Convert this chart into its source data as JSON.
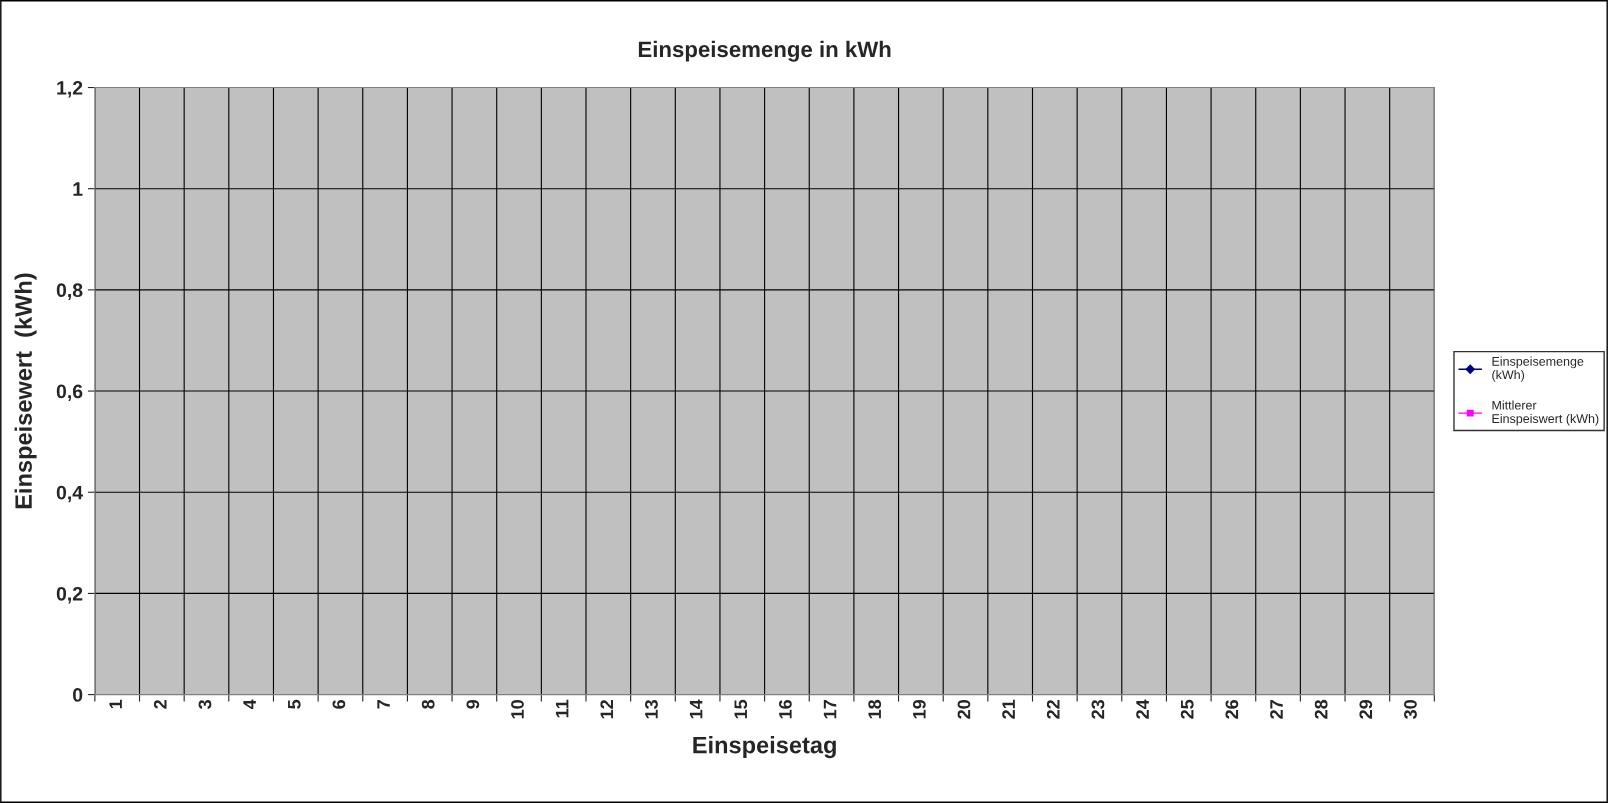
{
  "chart_data": {
    "type": "line",
    "title": "Einspeisemenge in kWh",
    "xlabel": "Einspeisetag",
    "ylabel": "Einspeisewert  (kWh)",
    "categories": [
      "1",
      "2",
      "3",
      "4",
      "5",
      "6",
      "7",
      "8",
      "9",
      "10",
      "11",
      "12",
      "13",
      "14",
      "15",
      "16",
      "17",
      "18",
      "19",
      "20",
      "21",
      "22",
      "23",
      "24",
      "25",
      "26",
      "27",
      "28",
      "29",
      "30"
    ],
    "series": [
      {
        "name": "Einspeisemenge (kWh)",
        "color": "#000080",
        "marker": "diamond",
        "values": [
          null,
          null,
          null,
          null,
          null,
          null,
          null,
          null,
          null,
          null,
          null,
          null,
          null,
          null,
          null,
          null,
          null,
          null,
          null,
          null,
          null,
          null,
          null,
          null,
          null,
          null,
          null,
          null,
          null,
          null
        ]
      },
      {
        "name": "Mittlerer Einspeiswert (kWh)",
        "color": "#ff00ff",
        "marker": "square",
        "values": [
          null,
          null,
          null,
          null,
          null,
          null,
          null,
          null,
          null,
          null,
          null,
          null,
          null,
          null,
          null,
          null,
          null,
          null,
          null,
          null,
          null,
          null,
          null,
          null,
          null,
          null,
          null,
          null,
          null,
          null
        ]
      }
    ],
    "ylim": [
      0,
      1.2
    ],
    "yticks": [
      {
        "value": 0,
        "label": "0"
      },
      {
        "value": 0.2,
        "label": "0,2"
      },
      {
        "value": 0.4,
        "label": "0,4"
      },
      {
        "value": 0.6,
        "label": "0,6"
      },
      {
        "value": 0.8,
        "label": "0,8"
      },
      {
        "value": 1,
        "label": "1"
      },
      {
        "value": 1.2,
        "label": "1,2"
      }
    ],
    "grid": true,
    "legend": "right"
  }
}
